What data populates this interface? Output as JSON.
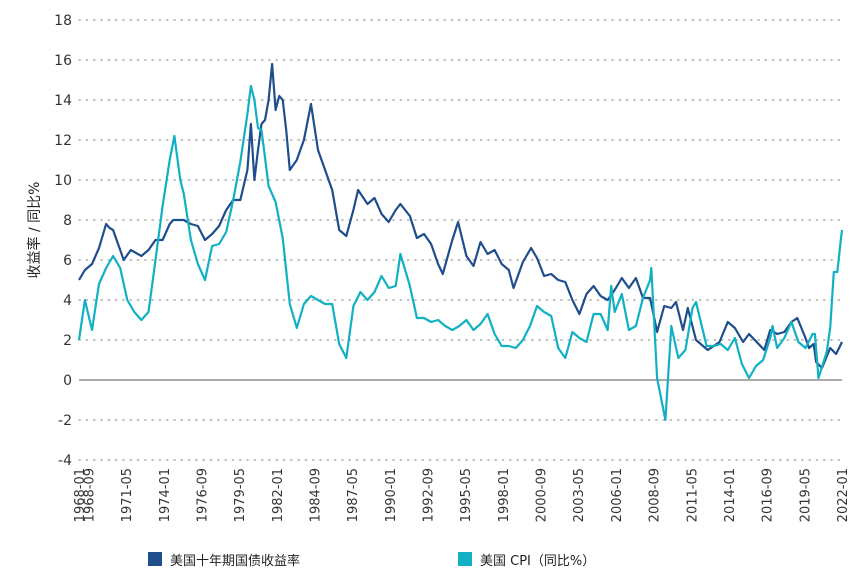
{
  "chart_data": {
    "type": "line",
    "ylabel": "收益率 / 同比%",
    "ylim": [
      -4,
      18
    ],
    "yticks": [
      "-4",
      "-2",
      "0",
      "2",
      "4",
      "6",
      "8",
      "10",
      "12",
      "14",
      "16",
      "18"
    ],
    "xlim": [
      "1968-01",
      "2022-01"
    ],
    "xticks": [
      "1968-01",
      "1968-09",
      "1971-05",
      "1974-01",
      "1976-09",
      "1979-05",
      "1982-01",
      "1984-09",
      "1987-05",
      "1990-01",
      "1992-09",
      "1995-05",
      "1998-01",
      "2000-09",
      "2003-05",
      "2006-01",
      "2008-09",
      "2011-05",
      "2014-01",
      "2016-09",
      "2019-05",
      "2022-01"
    ],
    "grid": true,
    "legend_position": "bottom",
    "series": [
      {
        "name": "美国十年期国债收益率",
        "color": "#1f4e8c",
        "points": [
          [
            "1968-01",
            5.0
          ],
          [
            "1968-06",
            5.5
          ],
          [
            "1968-12",
            5.8
          ],
          [
            "1969-06",
            6.6
          ],
          [
            "1969-12",
            7.8
          ],
          [
            "1970-03",
            7.6
          ],
          [
            "1970-06",
            7.5
          ],
          [
            "1970-12",
            6.5
          ],
          [
            "1971-03",
            6.0
          ],
          [
            "1971-09",
            6.5
          ],
          [
            "1972-06",
            6.2
          ],
          [
            "1972-12",
            6.5
          ],
          [
            "1973-06",
            7.0
          ],
          [
            "1973-12",
            7.0
          ],
          [
            "1974-06",
            7.8
          ],
          [
            "1974-09",
            8.0
          ],
          [
            "1975-06",
            8.0
          ],
          [
            "1975-12",
            7.8
          ],
          [
            "1976-06",
            7.7
          ],
          [
            "1976-12",
            7.0
          ],
          [
            "1977-06",
            7.3
          ],
          [
            "1977-12",
            7.7
          ],
          [
            "1978-06",
            8.5
          ],
          [
            "1978-12",
            9.0
          ],
          [
            "1979-06",
            9.0
          ],
          [
            "1979-12",
            10.5
          ],
          [
            "1980-03",
            12.8
          ],
          [
            "1980-06",
            10.0
          ],
          [
            "1980-09",
            11.5
          ],
          [
            "1980-12",
            12.8
          ],
          [
            "1981-03",
            13.0
          ],
          [
            "1981-06",
            14.0
          ],
          [
            "1981-09",
            15.8
          ],
          [
            "1981-12",
            13.5
          ],
          [
            "1982-03",
            14.2
          ],
          [
            "1982-06",
            14.0
          ],
          [
            "1982-09",
            12.5
          ],
          [
            "1982-12",
            10.5
          ],
          [
            "1983-06",
            11.0
          ],
          [
            "1983-12",
            12.0
          ],
          [
            "1984-06",
            13.8
          ],
          [
            "1984-12",
            11.5
          ],
          [
            "1985-06",
            10.5
          ],
          [
            "1985-12",
            9.5
          ],
          [
            "1986-06",
            7.5
          ],
          [
            "1986-12",
            7.2
          ],
          [
            "1987-06",
            8.5
          ],
          [
            "1987-10",
            9.5
          ],
          [
            "1988-06",
            8.8
          ],
          [
            "1988-12",
            9.1
          ],
          [
            "1989-06",
            8.3
          ],
          [
            "1989-12",
            7.9
          ],
          [
            "1990-06",
            8.5
          ],
          [
            "1990-10",
            8.8
          ],
          [
            "1991-06",
            8.2
          ],
          [
            "1991-12",
            7.1
          ],
          [
            "1992-06",
            7.3
          ],
          [
            "1992-12",
            6.8
          ],
          [
            "1993-06",
            5.8
          ],
          [
            "1993-10",
            5.3
          ],
          [
            "1994-06",
            7.0
          ],
          [
            "1994-11",
            7.9
          ],
          [
            "1995-06",
            6.2
          ],
          [
            "1995-12",
            5.7
          ],
          [
            "1996-06",
            6.9
          ],
          [
            "1996-12",
            6.3
          ],
          [
            "1997-06",
            6.5
          ],
          [
            "1997-12",
            5.8
          ],
          [
            "1998-06",
            5.5
          ],
          [
            "1998-10",
            4.6
          ],
          [
            "1999-06",
            5.9
          ],
          [
            "2000-01",
            6.6
          ],
          [
            "2000-06",
            6.1
          ],
          [
            "2000-12",
            5.2
          ],
          [
            "2001-06",
            5.3
          ],
          [
            "2001-12",
            5.0
          ],
          [
            "2002-06",
            4.9
          ],
          [
            "2002-12",
            4.0
          ],
          [
            "2003-06",
            3.3
          ],
          [
            "2003-12",
            4.3
          ],
          [
            "2004-06",
            4.7
          ],
          [
            "2004-12",
            4.2
          ],
          [
            "2005-06",
            4.0
          ],
          [
            "2005-12",
            4.5
          ],
          [
            "2006-06",
            5.1
          ],
          [
            "2006-12",
            4.6
          ],
          [
            "2007-06",
            5.1
          ],
          [
            "2007-12",
            4.1
          ],
          [
            "2008-06",
            4.1
          ],
          [
            "2008-12",
            2.4
          ],
          [
            "2009-06",
            3.7
          ],
          [
            "2009-12",
            3.6
          ],
          [
            "2010-04",
            3.9
          ],
          [
            "2010-10",
            2.5
          ],
          [
            "2011-02",
            3.6
          ],
          [
            "2011-09",
            2.0
          ],
          [
            "2012-07",
            1.5
          ],
          [
            "2012-12",
            1.7
          ],
          [
            "2013-05",
            1.9
          ],
          [
            "2013-12",
            2.9
          ],
          [
            "2014-06",
            2.6
          ],
          [
            "2015-01",
            1.9
          ],
          [
            "2015-06",
            2.3
          ],
          [
            "2016-07",
            1.5
          ],
          [
            "2016-12",
            2.5
          ],
          [
            "2017-06",
            2.3
          ],
          [
            "2017-12",
            2.4
          ],
          [
            "2018-06",
            2.9
          ],
          [
            "2018-11",
            3.1
          ],
          [
            "2019-06",
            2.1
          ],
          [
            "2019-09",
            1.6
          ],
          [
            "2020-01",
            1.8
          ],
          [
            "2020-03",
            0.9
          ],
          [
            "2020-08",
            0.6
          ],
          [
            "2021-03",
            1.6
          ],
          [
            "2021-08",
            1.3
          ],
          [
            "2022-01",
            1.9
          ]
        ]
      },
      {
        "name": "美国 CPI（同比%）",
        "color": "#11b1c3",
        "points": [
          [
            "1968-01",
            2.0
          ],
          [
            "1968-06",
            4.0
          ],
          [
            "1968-12",
            2.5
          ],
          [
            "1969-06",
            4.8
          ],
          [
            "1969-12",
            5.6
          ],
          [
            "1970-06",
            6.2
          ],
          [
            "1970-12",
            5.6
          ],
          [
            "1971-06",
            4.0
          ],
          [
            "1971-12",
            3.4
          ],
          [
            "1972-06",
            3.0
          ],
          [
            "1972-12",
            3.4
          ],
          [
            "1973-06",
            6.0
          ],
          [
            "1973-12",
            8.7
          ],
          [
            "1974-06",
            11.0
          ],
          [
            "1974-10",
            12.2
          ],
          [
            "1975-03",
            10.0
          ],
          [
            "1975-06",
            9.3
          ],
          [
            "1975-12",
            7.0
          ],
          [
            "1976-06",
            5.8
          ],
          [
            "1976-12",
            5.0
          ],
          [
            "1977-06",
            6.7
          ],
          [
            "1977-12",
            6.8
          ],
          [
            "1978-06",
            7.4
          ],
          [
            "1978-12",
            9.0
          ],
          [
            "1979-06",
            10.9
          ],
          [
            "1979-12",
            13.3
          ],
          [
            "1980-03",
            14.7
          ],
          [
            "1980-06",
            14.0
          ],
          [
            "1980-09",
            12.6
          ],
          [
            "1980-12",
            12.5
          ],
          [
            "1981-06",
            9.7
          ],
          [
            "1981-12",
            8.9
          ],
          [
            "1982-06",
            7.1
          ],
          [
            "1982-12",
            3.8
          ],
          [
            "1983-06",
            2.6
          ],
          [
            "1983-12",
            3.8
          ],
          [
            "1984-06",
            4.2
          ],
          [
            "1984-12",
            4.0
          ],
          [
            "1985-06",
            3.8
          ],
          [
            "1985-12",
            3.8
          ],
          [
            "1986-06",
            1.8
          ],
          [
            "1986-12",
            1.1
          ],
          [
            "1987-06",
            3.7
          ],
          [
            "1987-12",
            4.4
          ],
          [
            "1988-06",
            4.0
          ],
          [
            "1988-12",
            4.4
          ],
          [
            "1989-06",
            5.2
          ],
          [
            "1989-12",
            4.6
          ],
          [
            "1990-06",
            4.7
          ],
          [
            "1990-10",
            6.3
          ],
          [
            "1991-06",
            4.7
          ],
          [
            "1991-12",
            3.1
          ],
          [
            "1992-06",
            3.1
          ],
          [
            "1992-12",
            2.9
          ],
          [
            "1993-06",
            3.0
          ],
          [
            "1993-12",
            2.7
          ],
          [
            "1994-06",
            2.5
          ],
          [
            "1994-12",
            2.7
          ],
          [
            "1995-06",
            3.0
          ],
          [
            "1995-12",
            2.5
          ],
          [
            "1996-06",
            2.8
          ],
          [
            "1996-12",
            3.3
          ],
          [
            "1997-06",
            2.3
          ],
          [
            "1997-12",
            1.7
          ],
          [
            "1998-06",
            1.7
          ],
          [
            "1998-12",
            1.6
          ],
          [
            "1999-06",
            2.0
          ],
          [
            "1999-12",
            2.7
          ],
          [
            "2000-06",
            3.7
          ],
          [
            "2000-12",
            3.4
          ],
          [
            "2001-06",
            3.2
          ],
          [
            "2001-12",
            1.6
          ],
          [
            "2002-06",
            1.1
          ],
          [
            "2002-12",
            2.4
          ],
          [
            "2003-06",
            2.1
          ],
          [
            "2003-12",
            1.9
          ],
          [
            "2004-06",
            3.3
          ],
          [
            "2004-12",
            3.3
          ],
          [
            "2005-06",
            2.5
          ],
          [
            "2005-09",
            4.7
          ],
          [
            "2005-12",
            3.4
          ],
          [
            "2006-06",
            4.3
          ],
          [
            "2006-12",
            2.5
          ],
          [
            "2007-06",
            2.7
          ],
          [
            "2007-12",
            4.1
          ],
          [
            "2008-06",
            5.0
          ],
          [
            "2008-07",
            5.6
          ],
          [
            "2008-12",
            0.1
          ],
          [
            "2009-07",
            -2.0
          ],
          [
            "2009-12",
            2.7
          ],
          [
            "2010-06",
            1.1
          ],
          [
            "2010-12",
            1.5
          ],
          [
            "2011-06",
            3.6
          ],
          [
            "2011-09",
            3.9
          ],
          [
            "2012-06",
            1.7
          ],
          [
            "2012-12",
            1.7
          ],
          [
            "2013-06",
            1.8
          ],
          [
            "2013-12",
            1.5
          ],
          [
            "2014-06",
            2.1
          ],
          [
            "2014-12",
            0.8
          ],
          [
            "2015-06",
            0.1
          ],
          [
            "2015-12",
            0.7
          ],
          [
            "2016-06",
            1.0
          ],
          [
            "2016-12",
            2.1
          ],
          [
            "2017-02",
            2.7
          ],
          [
            "2017-06",
            1.6
          ],
          [
            "2017-12",
            2.1
          ],
          [
            "2018-06",
            2.9
          ],
          [
            "2018-12",
            1.9
          ],
          [
            "2019-06",
            1.6
          ],
          [
            "2019-12",
            2.3
          ],
          [
            "2020-02",
            2.3
          ],
          [
            "2020-05",
            0.1
          ],
          [
            "2020-12",
            1.4
          ],
          [
            "2021-03",
            2.6
          ],
          [
            "2021-06",
            5.4
          ],
          [
            "2021-09",
            5.4
          ],
          [
            "2021-12",
            7.0
          ],
          [
            "2022-01",
            7.5
          ]
        ]
      }
    ]
  },
  "legend": {
    "items": [
      {
        "label": "美国十年期国债收益率",
        "color": "#1f4e8c"
      },
      {
        "label": "美国 CPI（同比%）",
        "color": "#11b1c3"
      }
    ]
  }
}
